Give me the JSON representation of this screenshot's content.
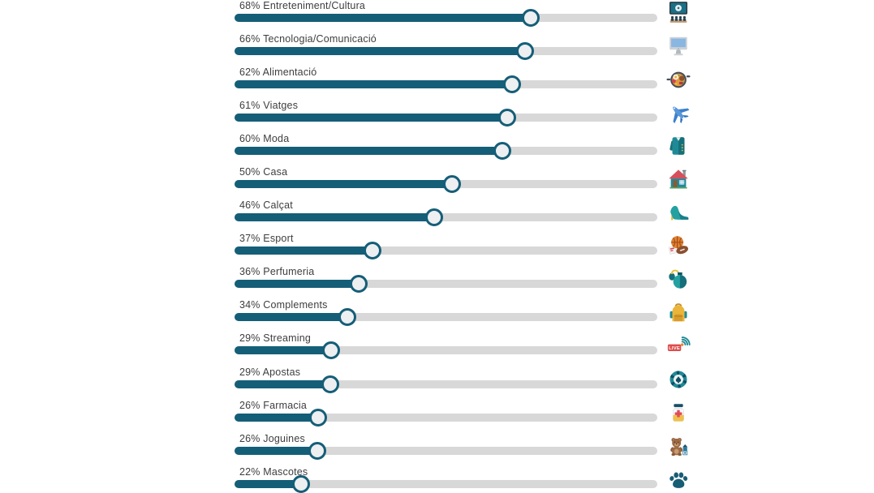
{
  "page": {
    "background": "#ffffff"
  },
  "colors": {
    "bar_fill": "#155e78",
    "track": "#d8d8d8",
    "handle_fill": "#edeff1",
    "handle_border": "#155e78",
    "label_text": "#3e3e3e"
  },
  "rows": [
    {
      "label": "68% Entreteniment/Cultura",
      "value": 68,
      "fill_pct": 70.0,
      "icon": "cinema-icon"
    },
    {
      "label": "66% Tecnologia/Comunicació",
      "value": 66,
      "fill_pct": 68.7,
      "icon": "desktop-computer-icon"
    },
    {
      "label": "62% Alimentació",
      "value": 62,
      "fill_pct": 65.6,
      "icon": "food-pan-icon"
    },
    {
      "label": "61% Viatges",
      "value": 61,
      "fill_pct": 64.5,
      "icon": "airplane-icon"
    },
    {
      "label": "60% Moda",
      "value": 60,
      "fill_pct": 63.3,
      "icon": "jacket-icon"
    },
    {
      "label": "50% Casa",
      "value": 50,
      "fill_pct": 51.4,
      "icon": "house-icon"
    },
    {
      "label": "46% Calçat",
      "value": 46,
      "fill_pct": 47.2,
      "icon": "high-heel-icon"
    },
    {
      "label": "37% Esport",
      "value": 37,
      "fill_pct": 32.6,
      "icon": "sport-balls-icon"
    },
    {
      "label": "36% Perfumeria",
      "value": 36,
      "fill_pct": 29.4,
      "icon": "perfume-icon"
    },
    {
      "label": "34% Complements",
      "value": 34,
      "fill_pct": 26.7,
      "icon": "backpack-icon"
    },
    {
      "label": "29% Streaming",
      "value": 29,
      "fill_pct": 22.8,
      "icon": "live-streaming-icon"
    },
    {
      "label": "29% Apostas",
      "value": 29,
      "fill_pct": 22.6,
      "icon": "casino-chip-icon"
    },
    {
      "label": "26% Farmacia",
      "value": 26,
      "fill_pct": 19.8,
      "icon": "medicine-jar-icon"
    },
    {
      "label": "26% Joguines",
      "value": 26,
      "fill_pct": 19.6,
      "icon": "teddy-bear-icon"
    },
    {
      "label": "22% Mascotes",
      "value": 22,
      "fill_pct": 15.7,
      "icon": "paw-icon"
    }
  ],
  "chart_data": {
    "type": "bar",
    "orientation": "horizontal",
    "categories": [
      "Entreteniment/Cultura",
      "Tecnologia/Comunicació",
      "Alimentació",
      "Viatges",
      "Moda",
      "Casa",
      "Calçat",
      "Esport",
      "Perfumeria",
      "Complements",
      "Streaming",
      "Apostas",
      "Farmacia",
      "Joguines",
      "Mascotes"
    ],
    "values": [
      68,
      66,
      62,
      61,
      60,
      50,
      46,
      37,
      36,
      34,
      29,
      29,
      26,
      26,
      22
    ],
    "value_format": "percent",
    "data_labels": [
      "68% Entreteniment/Cultura",
      "66% Tecnologia/Comunicació",
      "62% Alimentació",
      "61% Viatges",
      "60% Moda",
      "50% Casa",
      "46% Calçat",
      "37% Esport",
      "36% Perfumeria",
      "34% Complements",
      "29% Streaming",
      "29% Apostas",
      "26% Farmacia",
      "26% Joguines",
      "22% Mascotes"
    ],
    "title": "",
    "xlabel": "",
    "ylabel": "",
    "xlim": [
      0,
      100
    ],
    "grid": false,
    "legend": false,
    "style": "slider-bars-with-category-icons"
  }
}
